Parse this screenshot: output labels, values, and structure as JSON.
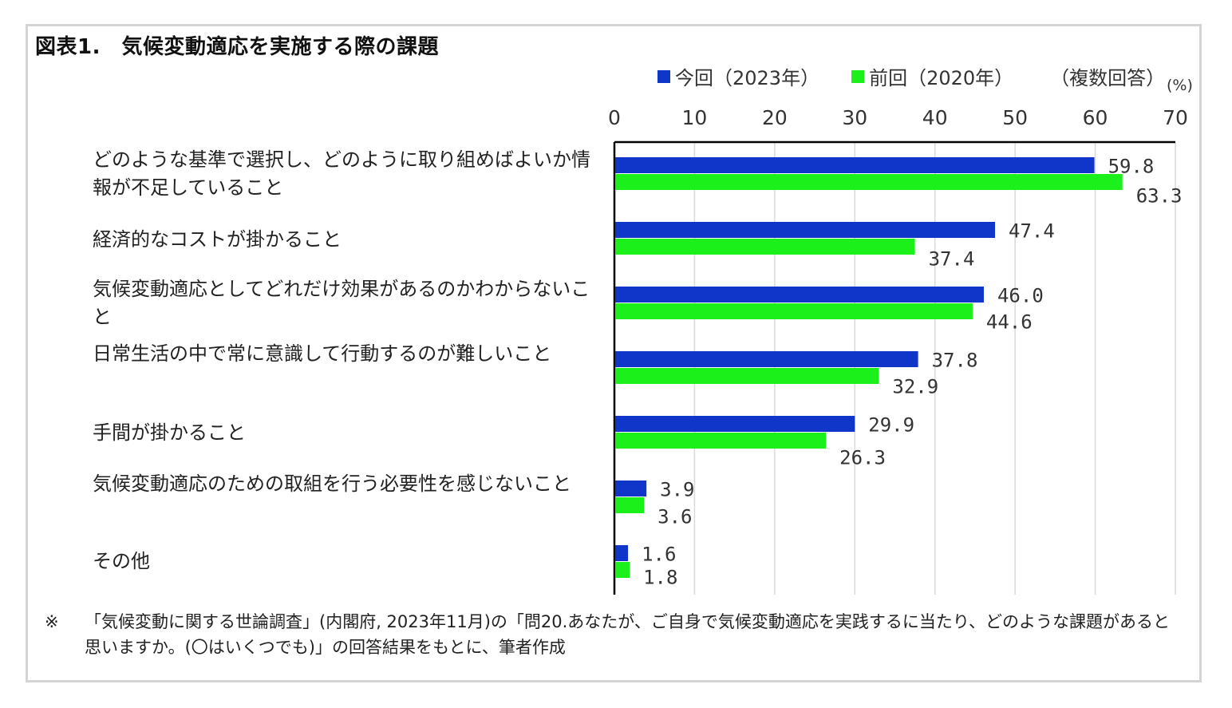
{
  "title": "図表1.　気候変動適応を実施する際の課題",
  "legend": {
    "items": [
      {
        "label": "今回（2023年）",
        "color": "#1035c9"
      },
      {
        "label": "前回（2020年）",
        "color": "#1bf01b"
      }
    ],
    "note": "（複数回答）"
  },
  "unit": "(%)",
  "footnote": {
    "mark": "※",
    "text": "「気候変動に関する世論調査」(内閣府, 2023年11月)の「問20.あなたが、ご自身で気候変動適応を実践するに当たり、どのような課題があると思いますか。(〇はいくつでも)」の回答結果をもとに、筆者作成"
  },
  "chart_data": {
    "type": "bar",
    "orientation": "horizontal",
    "categories": [
      "どのような基準で選択し、どのように取り組めばよいか情報が不足していること",
      "経済的なコストが掛かること",
      "気候変動適応としてどれだけ効果があるのかわからないこと",
      "日常生活の中で常に意識して行動するのが難しいこと",
      "手間が掛かること",
      "気候変動適応のための取組を行う必要性を感じないこと",
      "その他"
    ],
    "series": [
      {
        "name": "今回（2023年）",
        "color": "#1035c9",
        "values": [
          59.8,
          47.4,
          46.0,
          37.8,
          29.9,
          3.9,
          1.6
        ],
        "labels": [
          "59.8",
          "47.4",
          "46.0",
          "37.8",
          "29.9",
          "3.9",
          "1.6"
        ]
      },
      {
        "name": "前回（2020年）",
        "color": "#1bf01b",
        "values": [
          63.3,
          37.4,
          44.6,
          32.9,
          26.3,
          3.6,
          1.8
        ],
        "labels": [
          "63.3",
          "37.4",
          "44.6",
          "32.9",
          "26.3",
          "3.6",
          "1.8"
        ]
      }
    ],
    "xlim": [
      0,
      70
    ],
    "xticks": [
      0,
      10,
      20,
      30,
      40,
      50,
      60,
      70
    ],
    "axis_position": "top",
    "grid": true,
    "legend_position": "top-right"
  }
}
